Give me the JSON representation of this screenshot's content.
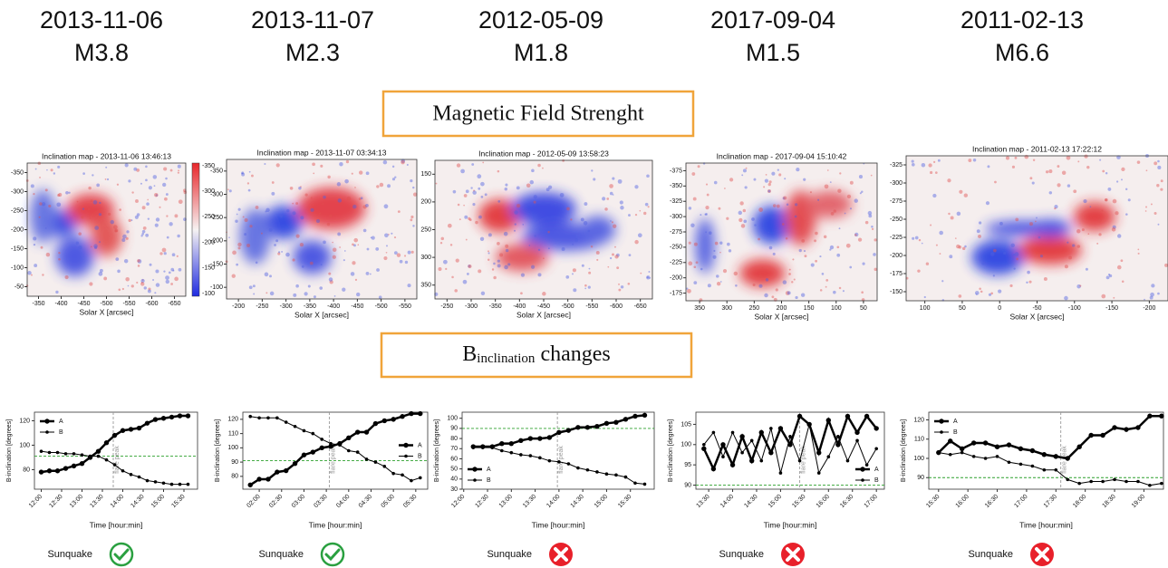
{
  "columns": [
    {
      "date": "2013-11-06",
      "flare_class": "M3.8",
      "sunquake": {
        "label": "Sunquake",
        "detected": true
      }
    },
    {
      "date": "2013-11-07",
      "flare_class": "M2.3",
      "sunquake": {
        "label": "Sunquake",
        "detected": true
      }
    },
    {
      "date": "2012-05-09",
      "flare_class": "M1.8",
      "sunquake": {
        "label": "Sunquake",
        "detected": false
      }
    },
    {
      "date": "2017-09-04",
      "flare_class": "M1.5",
      "sunquake": {
        "label": "Sunquake",
        "detected": false
      }
    },
    {
      "date": "2011-02-13",
      "flare_class": "M6.6",
      "sunquake": {
        "label": "Sunquake",
        "detected": false
      }
    }
  ],
  "sections": {
    "magnetic": "Magnetic Field Strenght",
    "inclination": {
      "symbol": "B",
      "subscript": "inclination",
      "text": "changes"
    }
  },
  "maps": [
    {
      "title": "Inclination map - 2013-11-06 13:46:13",
      "xlabel": "Solar X [arcsec]",
      "xticks": [
        -350,
        -400,
        -450,
        -500,
        -550,
        -600,
        -650
      ],
      "yticks": [
        -350,
        -300,
        -250,
        -200,
        -150,
        -100,
        -50
      ],
      "colorbar_ticks": [
        -350,
        -300,
        -250,
        -200,
        -150,
        -100
      ]
    },
    {
      "title": "Inclination map - 2013-11-07 03:34:13",
      "xlabel": "Solar X [arcsec]",
      "xticks": [
        -200,
        -250,
        -300,
        -350,
        -400,
        -450,
        -500,
        -550
      ],
      "yticks": [
        -350,
        -300,
        -250,
        -200,
        -150,
        -100
      ]
    },
    {
      "title": "Inclination map - 2012-05-09 13:58:23",
      "xlabel": "Solar X [arcsec]",
      "xticks": [
        -250,
        -300,
        -350,
        -400,
        -450,
        -500,
        -550,
        -600,
        -650
      ],
      "yticks": [
        150,
        200,
        250,
        300,
        350
      ]
    },
    {
      "title": "Inclination map - 2017-09-04 15:10:42",
      "xlabel": "Solar X [arcsec]",
      "xticks": [
        350,
        300,
        250,
        200,
        150,
        100,
        50
      ],
      "yticks": [
        -375,
        -350,
        -325,
        -300,
        -275,
        -250,
        -225,
        -200,
        -175
      ]
    },
    {
      "title": "Inclination map  - 2011-02-13 17:22:12",
      "xlabel": "Solar X [arcsec]",
      "xticks": [
        100,
        50,
        0,
        -50,
        -100,
        -150,
        -200
      ],
      "yticks": [
        -325,
        -300,
        -275,
        -250,
        -225,
        -200,
        -175,
        -150
      ]
    }
  ],
  "chart_data": [
    {
      "type": "line",
      "xlabel": "Time [hour:min]",
      "ylabel": "B-inclination [degrees]",
      "x": [
        "12:00",
        "12:12",
        "12:24",
        "12:36",
        "12:48",
        "13:00",
        "13:12",
        "13:24",
        "13:36",
        "13:48",
        "14:00",
        "14:12",
        "14:24",
        "14:36",
        "14:48",
        "15:00",
        "15:12",
        "15:24",
        "15:36"
      ],
      "xlim": [
        "11:50",
        "15:50"
      ],
      "xticks": [
        "12:00",
        "12:30",
        "13:00",
        "13:30",
        "14:00",
        "14:30",
        "15:00",
        "15:30"
      ],
      "ylim": [
        64,
        127
      ],
      "yticks": [
        80,
        100,
        120
      ],
      "legend": "upper left",
      "series": [
        {
          "name": "A",
          "color": "#000000",
          "linewidth": 2.5,
          "values": [
            78,
            79,
            79,
            81,
            83,
            85,
            90,
            95,
            102,
            108,
            112,
            113,
            114,
            118,
            121,
            122,
            123,
            124,
            124
          ]
        },
        {
          "name": "B",
          "color": "#000000",
          "linewidth": 1,
          "values": [
            95,
            94,
            94,
            93,
            93,
            92,
            91,
            91,
            88,
            84,
            79,
            76,
            74,
            71,
            70,
            69,
            68,
            68,
            68
          ]
        }
      ],
      "flare_peak": {
        "x": "13:46",
        "label": "flare peak"
      },
      "reference_line": {
        "y": 91,
        "color": "#2ca02c"
      }
    },
    {
      "type": "line",
      "xlabel": "Time [hour:min]",
      "ylabel": "B-inclination [degrees]",
      "x": [
        "01:48",
        "02:00",
        "02:12",
        "02:24",
        "02:36",
        "02:48",
        "03:00",
        "03:12",
        "03:24",
        "03:36",
        "03:48",
        "04:00",
        "04:12",
        "04:24",
        "04:36",
        "04:48",
        "05:00",
        "05:12",
        "05:24",
        "05:36"
      ],
      "xlim": [
        "01:38",
        "05:46"
      ],
      "xticks": [
        "02:00",
        "02:30",
        "03:00",
        "03:30",
        "04:00",
        "04:30",
        "05:00",
        "05:30"
      ],
      "ylim": [
        71,
        125
      ],
      "yticks": [
        80,
        90,
        100,
        110,
        120
      ],
      "legend": "center right",
      "series": [
        {
          "name": "A",
          "color": "#000000",
          "linewidth": 2.5,
          "values": [
            74,
            78,
            78,
            83,
            84,
            89,
            95,
            97,
            100,
            101,
            103,
            107,
            111,
            111,
            117,
            119,
            120,
            122,
            124,
            124
          ]
        },
        {
          "name": "B",
          "color": "#000000",
          "linewidth": 1,
          "values": [
            122,
            121,
            121,
            121,
            118,
            115,
            112,
            110,
            106,
            103,
            102,
            98,
            97,
            92,
            90,
            87,
            82,
            81,
            77,
            79
          ]
        }
      ],
      "flare_peak": {
        "x": "03:34",
        "label": "flare peak"
      },
      "reference_line": {
        "y": 91,
        "color": "#2ca02c"
      }
    },
    {
      "type": "line",
      "xlabel": "Time [hour:min]",
      "ylabel": "B-inclination [degrees]",
      "x": [
        "12:12",
        "12:24",
        "12:36",
        "12:48",
        "13:00",
        "13:12",
        "13:24",
        "13:36",
        "13:48",
        "14:00",
        "14:12",
        "14:24",
        "14:36",
        "14:48",
        "15:00",
        "15:12",
        "15:24",
        "15:36",
        "15:48"
      ],
      "xlim": [
        "11:58",
        "16:00"
      ],
      "xticks": [
        "12:00",
        "12:30",
        "13:00",
        "13:30",
        "14:00",
        "14:30",
        "15:00",
        "15:30"
      ],
      "ylim": [
        30,
        106
      ],
      "yticks": [
        30,
        40,
        50,
        60,
        70,
        80,
        90,
        100
      ],
      "legend": "lower left",
      "series": [
        {
          "name": "A",
          "color": "#000000",
          "linewidth": 2.5,
          "values": [
            72,
            72,
            72,
            75,
            75,
            78,
            80,
            80,
            81,
            86,
            88,
            91,
            91,
            92,
            95,
            96,
            99,
            102,
            103
          ]
        },
        {
          "name": "B",
          "color": "#000000",
          "linewidth": 1,
          "values": [
            71,
            71,
            71,
            68,
            66,
            64,
            63,
            61,
            58,
            57,
            55,
            51,
            49,
            47,
            45,
            44,
            42,
            36,
            35
          ]
        }
      ],
      "flare_peak": {
        "x": "13:58",
        "label": "flare peak"
      },
      "reference_line": {
        "y": 90,
        "color": "#2ca02c"
      }
    },
    {
      "type": "line",
      "xlabel": "Time [hour:min]",
      "ylabel": "B-inclination [degrees]",
      "x": [
        "13:24",
        "13:36",
        "13:48",
        "14:00",
        "14:12",
        "14:24",
        "14:36",
        "14:48",
        "15:00",
        "15:12",
        "15:24",
        "15:36",
        "15:48",
        "16:00",
        "16:12",
        "16:24",
        "16:36",
        "16:48",
        "17:00"
      ],
      "xlim": [
        "13:14",
        "17:10"
      ],
      "xticks": [
        "13:30",
        "14:00",
        "14:30",
        "15:00",
        "15:30",
        "16:00",
        "16:30",
        "17:00"
      ],
      "ylim": [
        89,
        108
      ],
      "yticks": [
        90,
        95,
        100,
        105
      ],
      "legend": "lower right",
      "series": [
        {
          "name": "A",
          "color": "#000000",
          "linewidth": 2.5,
          "values": [
            99,
            94,
            100,
            95,
            102,
            96,
            103,
            98,
            104,
            100,
            107,
            105,
            98,
            106,
            100,
            107,
            103,
            107,
            104
          ]
        },
        {
          "name": "B",
          "color": "#000000",
          "linewidth": 1,
          "values": [
            100,
            103,
            97,
            103,
            98,
            101,
            96,
            104,
            93,
            102,
            96,
            105,
            93,
            97,
            102,
            96,
            101,
            95,
            99
          ]
        }
      ],
      "flare_peak": {
        "x": "15:24",
        "label": "flare peak"
      },
      "reference_line": {
        "y": 90,
        "color": "#2ca02c"
      }
    },
    {
      "type": "line",
      "xlabel": "Time [hour:min]",
      "ylabel": "B-inclination [degrees]",
      "x": [
        "15:30",
        "15:42",
        "15:54",
        "16:06",
        "16:18",
        "16:30",
        "16:42",
        "16:54",
        "17:06",
        "17:18",
        "17:30",
        "17:42",
        "17:54",
        "18:06",
        "18:18",
        "18:30",
        "18:42",
        "18:54",
        "19:06",
        "19:18"
      ],
      "xlim": [
        "15:20",
        "19:20"
      ],
      "xticks": [
        "15:30",
        "16:00",
        "16:30",
        "17:00",
        "17:30",
        "18:00",
        "18:30",
        "19:00"
      ],
      "ylim": [
        84,
        124
      ],
      "yticks": [
        90,
        100,
        110,
        120
      ],
      "legend": "upper left",
      "series": [
        {
          "name": "A",
          "color": "#000000",
          "linewidth": 2.5,
          "values": [
            103,
            109,
            105,
            108,
            108,
            106,
            107,
            105,
            104,
            102,
            101,
            100,
            106,
            112,
            112,
            116,
            115,
            116,
            122,
            122
          ]
        },
        {
          "name": "B",
          "color": "#000000",
          "linewidth": 1,
          "values": [
            103,
            102,
            103,
            101,
            100,
            101,
            98,
            97,
            96,
            94,
            94,
            89,
            87,
            88,
            88,
            89,
            88,
            88,
            86,
            87
          ]
        }
      ],
      "flare_peak": {
        "x": "17:35",
        "label": "flare peak"
      },
      "reference_line": {
        "y": 90,
        "color": "#2ca02c"
      }
    }
  ]
}
